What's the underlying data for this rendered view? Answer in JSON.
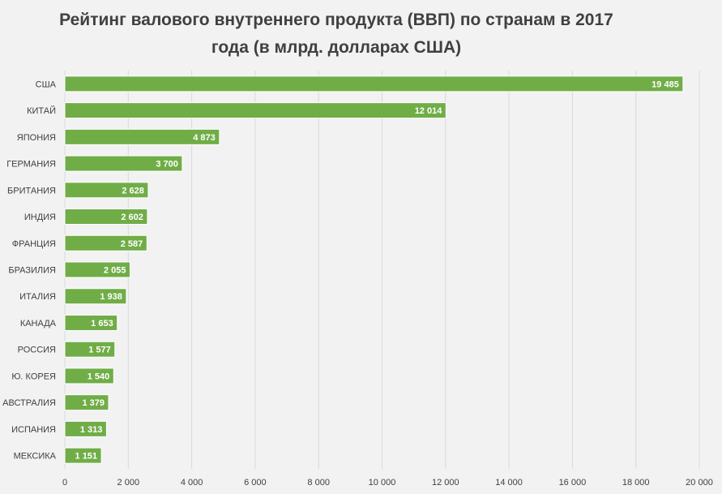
{
  "chart_data": {
    "type": "bar",
    "orientation": "horizontal",
    "title": "Рейтинг валового внутреннего продукта (ВВП) по странам в 2017 года (в млрд. долларах США)",
    "categories": [
      "США",
      "КИТАЙ",
      "ЯПОНИЯ",
      "ГЕРМАНИЯ",
      "БРИТАНИЯ",
      "ИНДИЯ",
      "ФРАНЦИЯ",
      "БРАЗИЛИЯ",
      "ИТАЛИЯ",
      "КАНАДА",
      "РОССИЯ",
      "Ю. КОРЕЯ",
      "АВСТРАЛИЯ",
      "ИСПАНИЯ",
      "МЕКСИКА"
    ],
    "values": [
      19485,
      12014,
      4873,
      3700,
      2628,
      2602,
      2587,
      2055,
      1938,
      1653,
      1577,
      1540,
      1379,
      1313,
      1151
    ],
    "value_labels": [
      "19 485",
      "12 014",
      "4 873",
      "3 700",
      "2 628",
      "2 602",
      "2 587",
      "2 055",
      "1 938",
      "1 653",
      "1 577",
      "1 540",
      "1 379",
      "1 313",
      "1 151"
    ],
    "xlim": [
      0,
      20000
    ],
    "x_ticks": [
      0,
      2000,
      4000,
      6000,
      8000,
      10000,
      12000,
      14000,
      16000,
      18000,
      20000
    ],
    "x_tick_labels": [
      "0",
      "2 000",
      "4 000",
      "6 000",
      "8 000",
      "10 000",
      "12 000",
      "14 000",
      "16 000",
      "18 000",
      "20 000"
    ],
    "xlabel": "",
    "ylabel": "",
    "grid": true,
    "legend": "none",
    "colors": {
      "bar": "#70ad47",
      "bar_outline": "#ffffff",
      "grid": "#d9d9d9",
      "background": "#f2f2f2",
      "text": "#404040"
    }
  }
}
